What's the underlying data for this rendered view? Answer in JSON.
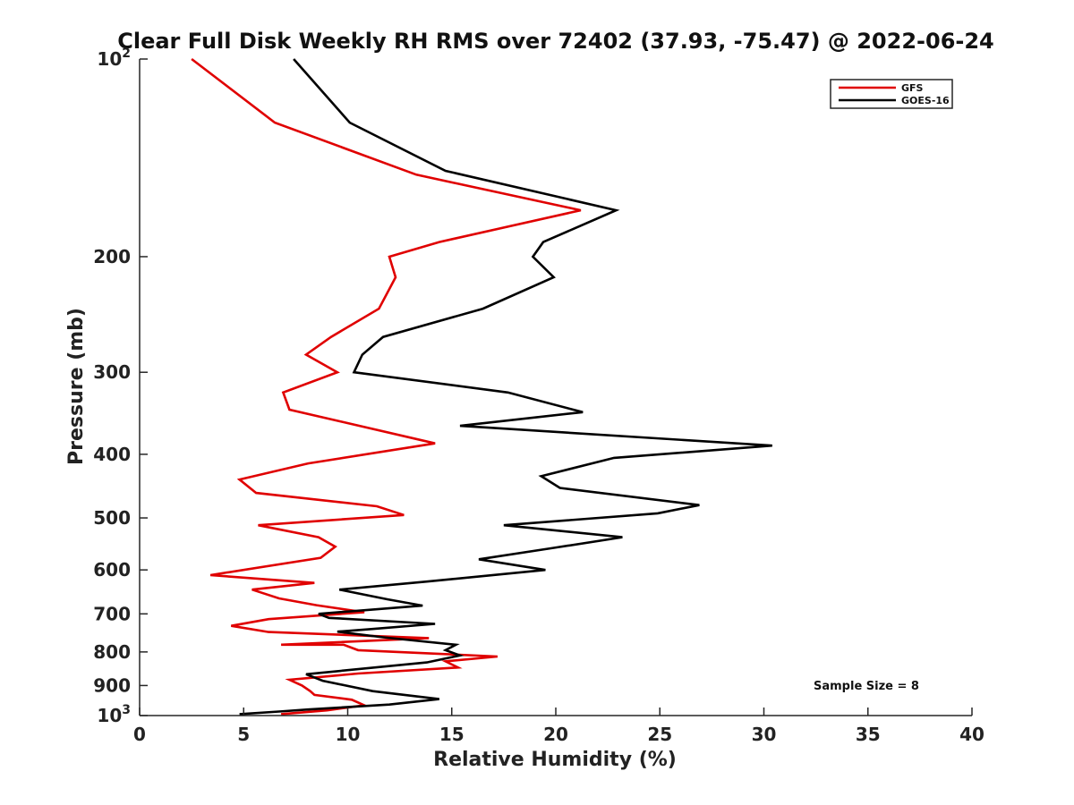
{
  "chart_data": {
    "type": "line",
    "title": "Clear Full Disk Weekly RH RMS over 72402 (37.93, -75.47) @ 2022-06-24",
    "xlabel": "Relative Humidity (%)",
    "ylabel": "Pressure (mb)",
    "xlim": [
      0,
      40
    ],
    "ylim": [
      100,
      1000
    ],
    "yscale": "log",
    "y_reversed": true,
    "xticks": [
      0,
      5,
      10,
      15,
      20,
      25,
      30,
      35,
      40
    ],
    "yticks": [
      {
        "value": 100,
        "base": "10",
        "exp": "2"
      },
      {
        "value": 200,
        "label": "200"
      },
      {
        "value": 300,
        "label": "300"
      },
      {
        "value": 400,
        "label": "400"
      },
      {
        "value": 500,
        "label": "500"
      },
      {
        "value": 600,
        "label": "600"
      },
      {
        "value": 700,
        "label": "700"
      },
      {
        "value": 800,
        "label": "800"
      },
      {
        "value": 900,
        "label": "900"
      },
      {
        "value": 1000,
        "base": "10",
        "exp": "3"
      }
    ],
    "legend_position": "top-right",
    "annotation": "Sample Size = 8",
    "series": [
      {
        "name": "GFS",
        "color": "#e00000",
        "points": [
          [
            2.5,
            100
          ],
          [
            6.5,
            125
          ],
          [
            13.3,
            150
          ],
          [
            21.2,
            170
          ],
          [
            14.4,
            190
          ],
          [
            12,
            200
          ],
          [
            12.3,
            215
          ],
          [
            11.5,
            240
          ],
          [
            9.2,
            265
          ],
          [
            8,
            282
          ],
          [
            9.5,
            300
          ],
          [
            6.9,
            322
          ],
          [
            7.2,
            342
          ],
          [
            14.2,
            385
          ],
          [
            8.1,
            413
          ],
          [
            4.8,
            437
          ],
          [
            5.6,
            458
          ],
          [
            11.4,
            480
          ],
          [
            12.7,
            495
          ],
          [
            5.7,
            513
          ],
          [
            8.6,
            535
          ],
          [
            9.4,
            553
          ],
          [
            8.7,
            575
          ],
          [
            3.4,
            611
          ],
          [
            8.4,
            628
          ],
          [
            5.4,
            643
          ],
          [
            6.7,
            663
          ],
          [
            8.5,
            679
          ],
          [
            10.8,
            696
          ],
          [
            6.2,
            713
          ],
          [
            4.4,
            730
          ],
          [
            6.2,
            746
          ],
          [
            13.9,
            762
          ],
          [
            6.8,
            780
          ],
          [
            9.8,
            780
          ],
          [
            10.5,
            795
          ],
          [
            17.2,
            813
          ],
          [
            14.7,
            827
          ],
          [
            15.3,
            845
          ],
          [
            10.5,
            863
          ],
          [
            7.2,
            882
          ],
          [
            7.8,
            900
          ],
          [
            8.2,
            918
          ],
          [
            8.4,
            930
          ],
          [
            10.2,
            946
          ],
          [
            10.8,
            965
          ],
          [
            9.7,
            975
          ],
          [
            9.0,
            982
          ],
          [
            6.8,
            995
          ]
        ]
      },
      {
        "name": "GOES-16",
        "color": "#000000",
        "points": [
          [
            7.4,
            100
          ],
          [
            10.1,
            125
          ],
          [
            14.7,
            148
          ],
          [
            22.9,
            170
          ],
          [
            19.4,
            190
          ],
          [
            18.9,
            200
          ],
          [
            19.9,
            215
          ],
          [
            16.5,
            240
          ],
          [
            11.7,
            265
          ],
          [
            10.7,
            282
          ],
          [
            10.3,
            300
          ],
          [
            17.7,
            322
          ],
          [
            21.3,
            345
          ],
          [
            15.4,
            362
          ],
          [
            30.4,
            388
          ],
          [
            22.8,
            405
          ],
          [
            19.3,
            432
          ],
          [
            20.2,
            450
          ],
          [
            26.9,
            478
          ],
          [
            24.9,
            492
          ],
          [
            17.5,
            513
          ],
          [
            23.2,
            535
          ],
          [
            19.8,
            556
          ],
          [
            16.3,
            578
          ],
          [
            19.5,
            600
          ],
          [
            13.8,
            625
          ],
          [
            9.6,
            643
          ],
          [
            11.9,
            665
          ],
          [
            13.6,
            680
          ],
          [
            8.6,
            700
          ],
          [
            9.1,
            710
          ],
          [
            14.2,
            725
          ],
          [
            11.2,
            738
          ],
          [
            9.5,
            745
          ],
          [
            11.7,
            760
          ],
          [
            15.2,
            780
          ],
          [
            14.7,
            795
          ],
          [
            15.4,
            810
          ],
          [
            13.8,
            830
          ],
          [
            8.0,
            865
          ],
          [
            8.8,
            885
          ],
          [
            11.2,
            918
          ],
          [
            14.4,
            944
          ],
          [
            12.0,
            962
          ],
          [
            8.1,
            979
          ],
          [
            6.7,
            986
          ],
          [
            4.8,
            995
          ]
        ]
      }
    ]
  }
}
